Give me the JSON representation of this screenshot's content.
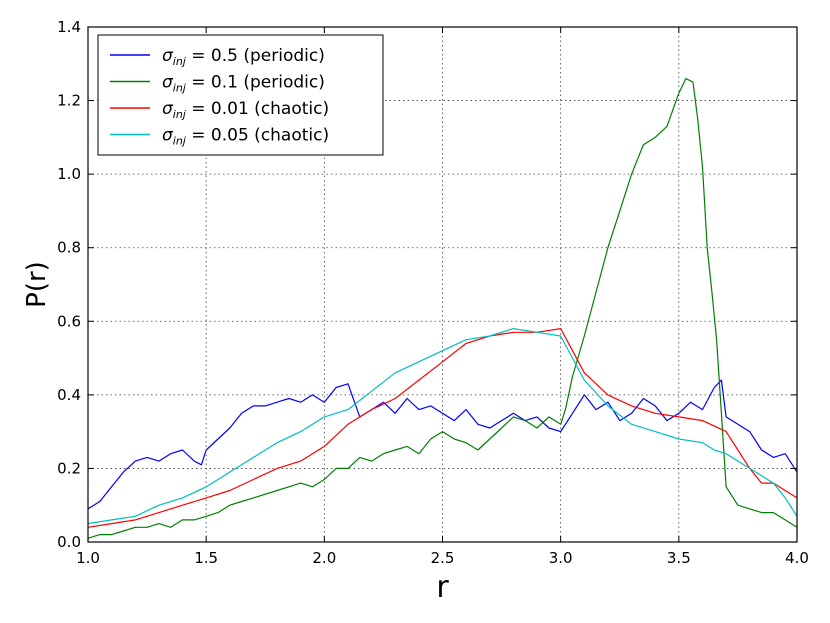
{
  "chart_data": {
    "type": "line",
    "xlabel": "r",
    "ylabel": "P(r)",
    "xlim": [
      1.0,
      4.0
    ],
    "ylim": [
      0.0,
      1.4
    ],
    "xticks": [
      "1.0",
      "1.5",
      "2.0",
      "2.5",
      "3.0",
      "3.5",
      "4.0"
    ],
    "yticks": [
      "0.0",
      "0.2",
      "0.4",
      "0.6",
      "0.8",
      "1.0",
      "1.2",
      "1.4"
    ],
    "grid": true,
    "legend_position": "top-left",
    "series": [
      {
        "name": "σinj = 0.5 (periodic)",
        "sigma_symbol": "σ",
        "sigma_subscript": "inj",
        "label_rest": " = 0.5 (periodic)",
        "color": "#0000ff",
        "x": [
          1.0,
          1.05,
          1.1,
          1.15,
          1.2,
          1.25,
          1.3,
          1.35,
          1.4,
          1.45,
          1.48,
          1.5,
          1.55,
          1.6,
          1.65,
          1.7,
          1.75,
          1.8,
          1.85,
          1.9,
          1.95,
          2.0,
          2.05,
          2.1,
          2.15,
          2.2,
          2.25,
          2.3,
          2.35,
          2.4,
          2.45,
          2.5,
          2.55,
          2.6,
          2.65,
          2.7,
          2.75,
          2.8,
          2.85,
          2.9,
          2.95,
          3.0,
          3.05,
          3.1,
          3.15,
          3.2,
          3.25,
          3.3,
          3.35,
          3.4,
          3.45,
          3.5,
          3.55,
          3.6,
          3.65,
          3.68,
          3.7,
          3.75,
          3.8,
          3.85,
          3.9,
          3.95,
          4.0
        ],
        "y": [
          0.09,
          0.11,
          0.15,
          0.19,
          0.22,
          0.23,
          0.22,
          0.24,
          0.25,
          0.22,
          0.21,
          0.25,
          0.28,
          0.31,
          0.35,
          0.37,
          0.37,
          0.38,
          0.39,
          0.38,
          0.4,
          0.38,
          0.42,
          0.43,
          0.34,
          0.36,
          0.38,
          0.35,
          0.39,
          0.36,
          0.37,
          0.35,
          0.33,
          0.36,
          0.32,
          0.31,
          0.33,
          0.35,
          0.33,
          0.34,
          0.31,
          0.3,
          0.35,
          0.4,
          0.36,
          0.38,
          0.33,
          0.35,
          0.39,
          0.37,
          0.33,
          0.35,
          0.38,
          0.36,
          0.42,
          0.44,
          0.34,
          0.32,
          0.3,
          0.25,
          0.23,
          0.24,
          0.19
        ]
      },
      {
        "name": "σinj = 0.1 (periodic)",
        "sigma_symbol": "σ",
        "sigma_subscript": "inj",
        "label_rest": " = 0.1 (periodic)",
        "color": "#008000",
        "x": [
          1.0,
          1.05,
          1.1,
          1.15,
          1.2,
          1.25,
          1.3,
          1.35,
          1.4,
          1.45,
          1.5,
          1.55,
          1.6,
          1.65,
          1.7,
          1.75,
          1.8,
          1.85,
          1.9,
          1.95,
          2.0,
          2.05,
          2.1,
          2.15,
          2.2,
          2.25,
          2.3,
          2.35,
          2.4,
          2.45,
          2.5,
          2.55,
          2.6,
          2.65,
          2.7,
          2.75,
          2.8,
          2.85,
          2.9,
          2.95,
          3.0,
          3.02,
          3.05,
          3.1,
          3.15,
          3.2,
          3.25,
          3.3,
          3.35,
          3.4,
          3.45,
          3.5,
          3.53,
          3.56,
          3.58,
          3.6,
          3.62,
          3.64,
          3.66,
          3.68,
          3.7,
          3.75,
          3.8,
          3.85,
          3.9,
          3.95,
          4.0
        ],
        "y": [
          0.01,
          0.02,
          0.02,
          0.03,
          0.04,
          0.04,
          0.05,
          0.04,
          0.06,
          0.06,
          0.07,
          0.08,
          0.1,
          0.11,
          0.12,
          0.13,
          0.14,
          0.15,
          0.16,
          0.15,
          0.17,
          0.2,
          0.2,
          0.23,
          0.22,
          0.24,
          0.25,
          0.26,
          0.24,
          0.28,
          0.3,
          0.28,
          0.27,
          0.25,
          0.28,
          0.31,
          0.34,
          0.33,
          0.31,
          0.34,
          0.32,
          0.36,
          0.45,
          0.56,
          0.68,
          0.8,
          0.9,
          1.0,
          1.08,
          1.1,
          1.13,
          1.22,
          1.26,
          1.25,
          1.15,
          1.02,
          0.8,
          0.68,
          0.55,
          0.35,
          0.15,
          0.1,
          0.09,
          0.08,
          0.08,
          0.06,
          0.04
        ]
      },
      {
        "name": "σinj = 0.01 (chaotic)",
        "sigma_symbol": "σ",
        "sigma_subscript": "inj",
        "label_rest": " = 0.01 (chaotic)",
        "color": "#ff0000",
        "x": [
          1.0,
          1.1,
          1.2,
          1.3,
          1.4,
          1.5,
          1.6,
          1.7,
          1.8,
          1.9,
          2.0,
          2.1,
          2.2,
          2.3,
          2.4,
          2.5,
          2.6,
          2.7,
          2.8,
          2.9,
          3.0,
          3.05,
          3.1,
          3.2,
          3.3,
          3.4,
          3.5,
          3.6,
          3.7,
          3.75,
          3.8,
          3.85,
          3.9,
          3.95,
          4.0
        ],
        "y": [
          0.04,
          0.05,
          0.06,
          0.08,
          0.1,
          0.12,
          0.14,
          0.17,
          0.2,
          0.22,
          0.26,
          0.32,
          0.36,
          0.39,
          0.44,
          0.49,
          0.54,
          0.56,
          0.57,
          0.57,
          0.58,
          0.52,
          0.46,
          0.4,
          0.37,
          0.35,
          0.34,
          0.33,
          0.3,
          0.25,
          0.2,
          0.16,
          0.16,
          0.14,
          0.12
        ]
      },
      {
        "name": "σinj = 0.05 (chaotic)",
        "sigma_symbol": "σ",
        "sigma_subscript": "inj",
        "label_rest": " = 0.05 (chaotic)",
        "color": "#00bfbf",
        "x": [
          1.0,
          1.1,
          1.2,
          1.3,
          1.4,
          1.5,
          1.6,
          1.7,
          1.8,
          1.9,
          2.0,
          2.1,
          2.2,
          2.3,
          2.4,
          2.5,
          2.6,
          2.7,
          2.8,
          2.9,
          3.0,
          3.05,
          3.1,
          3.2,
          3.3,
          3.4,
          3.5,
          3.6,
          3.65,
          3.7,
          3.75,
          3.8,
          3.85,
          3.9,
          3.95,
          4.0
        ],
        "y": [
          0.05,
          0.06,
          0.07,
          0.1,
          0.12,
          0.15,
          0.19,
          0.23,
          0.27,
          0.3,
          0.34,
          0.36,
          0.41,
          0.46,
          0.49,
          0.52,
          0.55,
          0.56,
          0.58,
          0.57,
          0.56,
          0.5,
          0.44,
          0.37,
          0.32,
          0.3,
          0.28,
          0.27,
          0.25,
          0.24,
          0.22,
          0.2,
          0.18,
          0.16,
          0.12,
          0.07
        ]
      }
    ]
  }
}
